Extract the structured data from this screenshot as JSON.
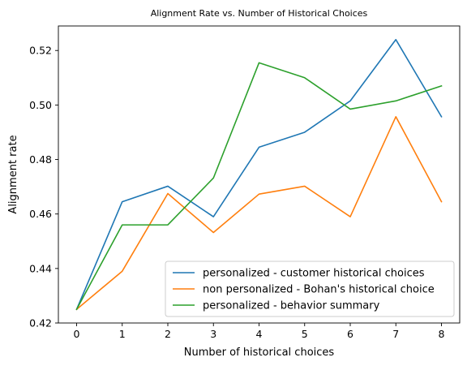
{
  "chart_data": {
    "type": "line",
    "title": "Alignment Rate vs. Number of Historical Choices",
    "xlabel": "Number of historical choices",
    "ylabel": "Alignment rate",
    "x": [
      0,
      1,
      2,
      3,
      4,
      5,
      6,
      7,
      8
    ],
    "xlim": [
      -0.4,
      8.4
    ],
    "ylim": [
      0.42,
      0.529
    ],
    "xticks": [
      "0",
      "1",
      "2",
      "3",
      "4",
      "5",
      "6",
      "7",
      "8"
    ],
    "yticks": [
      "0.42",
      "0.44",
      "0.46",
      "0.48",
      "0.50",
      "0.52"
    ],
    "grid": false,
    "legend_position": "lower-right",
    "series": [
      {
        "name": "personalized - customer historical choices",
        "color": "#1f77b4",
        "values": [
          0.425,
          0.4645,
          0.4702,
          0.459,
          0.4845,
          0.49,
          0.5015,
          0.524,
          0.4957
        ]
      },
      {
        "name": "non personalized - Bohan's historical choice",
        "color": "#ff7f0e",
        "values": [
          0.425,
          0.439,
          0.4675,
          0.4532,
          0.4673,
          0.4702,
          0.459,
          0.4957,
          0.4645
        ]
      },
      {
        "name": "personalized - behavior summary",
        "color": "#2ca02c",
        "values": [
          0.425,
          0.456,
          0.456,
          0.4732,
          0.5155,
          0.51,
          0.4985,
          0.5015,
          0.507
        ]
      }
    ]
  }
}
